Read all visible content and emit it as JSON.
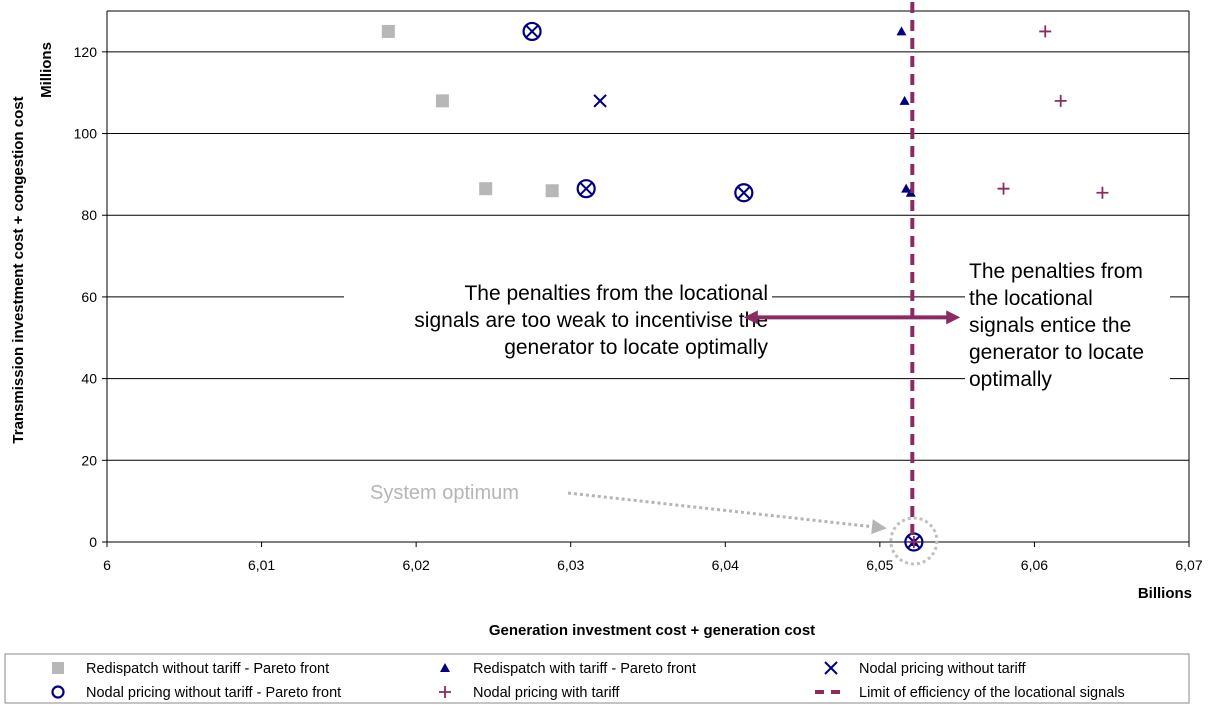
{
  "chart_data": {
    "type": "scatter",
    "xlabel": "Generation investment cost + generation cost",
    "ylabel": "Transmission investment cost + congestion cost",
    "x_unit": "Billions",
    "y_unit": "Millions",
    "xlim": [
      6.0,
      6.07
    ],
    "ylim": [
      0,
      130
    ],
    "x_ticks": [
      6.0,
      6.01,
      6.02,
      6.03,
      6.04,
      6.05,
      6.06,
      6.07
    ],
    "x_tick_labels": [
      "6",
      "6,01",
      "6,02",
      "6,03",
      "6,04",
      "6,05",
      "6,06",
      "6,07"
    ],
    "y_ticks": [
      0,
      20,
      40,
      60,
      80,
      100,
      120
    ],
    "y_tick_labels": [
      "0",
      "20",
      "40",
      "60",
      "80",
      "100",
      "120"
    ],
    "grid": "horizontal",
    "legend_placement": "bottom",
    "series": [
      {
        "name": "Redispatch without tariff - Pareto front",
        "marker": "square",
        "color": "#b7b7b7",
        "points": [
          [
            6.0182,
            125
          ],
          [
            6.0217,
            108
          ],
          [
            6.0245,
            86.5
          ],
          [
            6.0288,
            86
          ]
        ]
      },
      {
        "name": "Redispatch with tariff - Pareto front",
        "marker": "triangle",
        "color": "#00007f",
        "points": [
          [
            6.0514,
            125
          ],
          [
            6.0516,
            108
          ],
          [
            6.0517,
            86.5
          ],
          [
            6.052,
            85.5
          ],
          [
            6.0522,
            0
          ]
        ]
      },
      {
        "name": "Nodal pricing without tariff",
        "marker": "x",
        "color": "#00007f",
        "points": [
          [
            6.0275,
            125
          ],
          [
            6.0319,
            108
          ],
          [
            6.031,
            86.5
          ],
          [
            6.0412,
            85.5
          ],
          [
            6.0522,
            0
          ]
        ]
      },
      {
        "name": "Nodal pricing without tariff - Pareto front",
        "marker": "circle",
        "color": "#00007f",
        "points": [
          [
            6.0275,
            125
          ],
          [
            6.031,
            86.5
          ],
          [
            6.0412,
            85.5
          ],
          [
            6.0522,
            0
          ]
        ]
      },
      {
        "name": "Nodal pricing with tariff",
        "marker": "plus",
        "color": "#8b2b62",
        "points": [
          [
            6.0607,
            125
          ],
          [
            6.0617,
            108
          ],
          [
            6.058,
            86.5
          ],
          [
            6.0644,
            85.5
          ],
          [
            6.0522,
            0
          ]
        ]
      },
      {
        "name": "Limit of efficiency of the locational signals",
        "marker": "dashed-line",
        "color": "#8b2b62",
        "x": 6.0521
      }
    ],
    "annotations": {
      "left_text": [
        "The penalties from the locational",
        "signals are too weak to incentivise the",
        "generator to locate optimally"
      ],
      "right_text": [
        "The penalties from",
        "the locational",
        "signals entice the",
        "generator to locate",
        "optimally"
      ],
      "optimum_label": "System optimum",
      "arrow_y": 55,
      "arrow_x_range": [
        6.0412,
        6.0552
      ],
      "optimum_point": [
        6.0522,
        0
      ]
    }
  }
}
